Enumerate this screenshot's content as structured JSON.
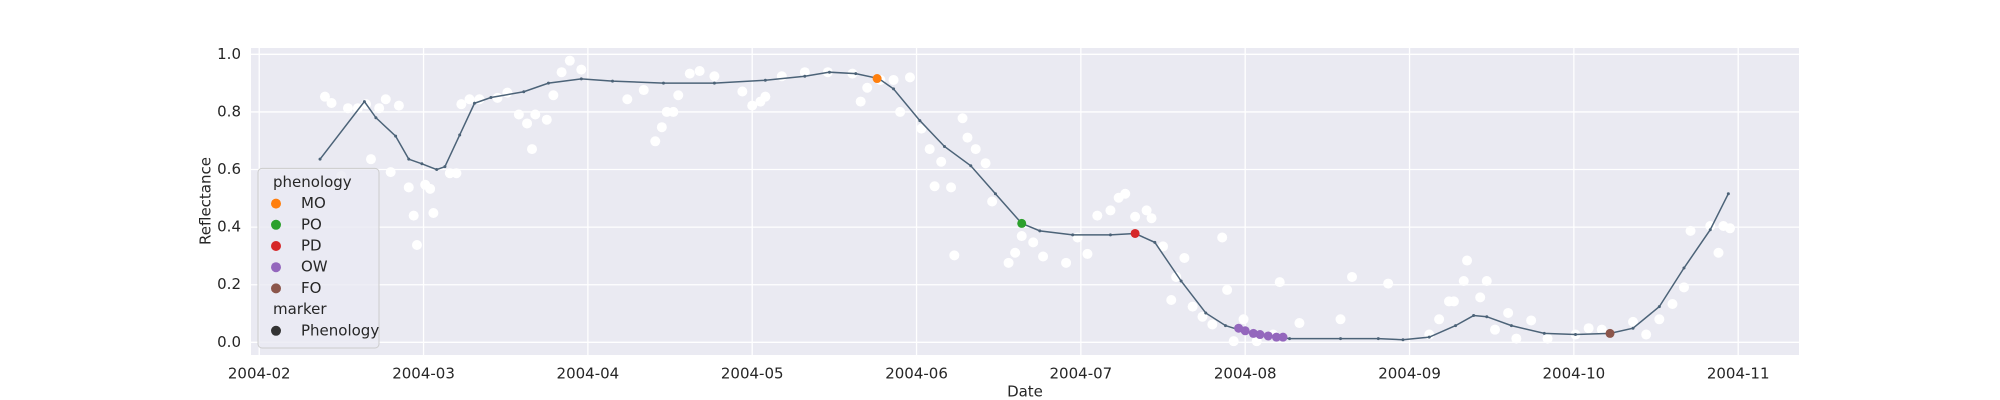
{
  "chart_data": {
    "type": "line",
    "xlabel": "Date",
    "ylabel": "Reflectance",
    "xlim": [
      1.95,
      11.37
    ],
    "ylim": [
      -0.044,
      1.022
    ],
    "xticks": [
      {
        "value": 2,
        "label": "2004-02"
      },
      {
        "value": 3,
        "label": "2004-03"
      },
      {
        "value": 4,
        "label": "2004-04"
      },
      {
        "value": 5,
        "label": "2004-05"
      },
      {
        "value": 6,
        "label": "2004-06"
      },
      {
        "value": 7,
        "label": "2004-07"
      },
      {
        "value": 8,
        "label": "2004-08"
      },
      {
        "value": 9,
        "label": "2004-09"
      },
      {
        "value": 10,
        "label": "2004-10"
      },
      {
        "value": 11,
        "label": "2004-11"
      }
    ],
    "yticks": [
      {
        "value": 0,
        "label": "0.0"
      },
      0.2,
      0.4,
      0.6,
      0.8,
      {
        "value": 1,
        "label": "1.0"
      }
    ],
    "grid": true,
    "legend_corner": "lower left",
    "observations": {
      "color": "#ffffff",
      "x": [
        2.4,
        2.44,
        2.5,
        2.54,
        2.6,
        2.65,
        2.73,
        2.77,
        2.85,
        2.68,
        2.8,
        2.91,
        2.94,
        2.96,
        3.01,
        3.04,
        3.06,
        3.16,
        3.2,
        3.23,
        3.28,
        3.34,
        3.45,
        3.51,
        3.58,
        3.63,
        3.66,
        3.68,
        3.75,
        3.79,
        3.84,
        3.89,
        3.96,
        4.24,
        4.34,
        4.41,
        4.45,
        4.48,
        4.52,
        4.55,
        4.62,
        4.68,
        4.77,
        4.94,
        5.0,
        5.05,
        5.08,
        5.18,
        5.32,
        5.46,
        5.61,
        5.66,
        5.7,
        5.78,
        5.86,
        5.9,
        5.96,
        6.03,
        6.08,
        6.11,
        6.15,
        6.21,
        6.23,
        6.28,
        6.31,
        6.36,
        6.42,
        6.46,
        6.56,
        6.6,
        6.64,
        6.71,
        6.77,
        6.91,
        6.98,
        7.04,
        7.1,
        7.18,
        7.23,
        7.27,
        7.33,
        7.4,
        7.43,
        7.5,
        7.55,
        7.58,
        7.63,
        7.68,
        7.74,
        7.8,
        7.86,
        7.89,
        7.93,
        7.99,
        8.07,
        8.17,
        8.21,
        8.33,
        8.58,
        8.65,
        8.87,
        9.12,
        9.18,
        9.24,
        9.27,
        9.33,
        9.35,
        9.43,
        9.47,
        9.52,
        9.6,
        9.65,
        9.74,
        9.84,
        10.01,
        10.09,
        10.17,
        10.36,
        10.44,
        10.52,
        10.6,
        10.67,
        10.71,
        10.83,
        10.88,
        10.91,
        10.95
      ],
      "values": [
        0.853,
        0.831,
        0.578,
        0.813,
        0.813,
        0.827,
        0.813,
        0.844,
        0.822,
        0.636,
        0.591,
        0.538,
        0.44,
        0.338,
        0.547,
        0.533,
        0.449,
        0.587,
        0.587,
        0.827,
        0.844,
        0.844,
        0.849,
        0.867,
        0.791,
        0.76,
        0.671,
        0.791,
        0.773,
        0.858,
        0.938,
        0.978,
        0.947,
        0.844,
        0.876,
        0.698,
        0.747,
        0.8,
        0.8,
        0.858,
        0.933,
        0.942,
        0.924,
        0.871,
        0.822,
        0.836,
        0.853,
        0.924,
        0.938,
        0.938,
        0.933,
        0.836,
        0.884,
        0.911,
        0.911,
        0.8,
        0.92,
        0.742,
        0.671,
        0.542,
        0.627,
        0.538,
        0.302,
        0.778,
        0.711,
        0.671,
        0.622,
        0.489,
        0.276,
        0.311,
        0.369,
        0.347,
        0.298,
        0.276,
        0.364,
        0.307,
        0.44,
        0.458,
        0.502,
        0.516,
        0.436,
        0.458,
        0.431,
        0.333,
        0.147,
        0.227,
        0.293,
        0.124,
        0.089,
        0.062,
        0.364,
        0.182,
        0.004,
        0.08,
        0.004,
        0.027,
        0.209,
        0.067,
        0.08,
        0.227,
        0.204,
        0.027,
        0.08,
        0.142,
        0.142,
        0.213,
        0.284,
        0.156,
        0.213,
        0.044,
        0.102,
        0.013,
        0.076,
        0.013,
        0.027,
        0.049,
        0.044,
        0.071,
        0.027,
        0.08,
        0.133,
        0.191,
        0.387,
        0.404,
        0.311,
        0.404,
        0.396
      ]
    },
    "curve": {
      "color": "#4c6378",
      "x": [
        2.37,
        2.64,
        2.71,
        2.83,
        2.91,
        2.99,
        3.08,
        3.13,
        3.22,
        3.31,
        3.41,
        3.61,
        3.76,
        3.96,
        4.15,
        4.46,
        4.77,
        5.08,
        5.32,
        5.47,
        5.63,
        5.77,
        5.86,
        6.02,
        6.17,
        6.33,
        6.48,
        6.64,
        6.75,
        6.95,
        7.18,
        7.33,
        7.45,
        7.61,
        7.76,
        7.88,
        7.96,
        8.07,
        8.27,
        8.58,
        8.81,
        8.96,
        9.12,
        9.28,
        9.39,
        9.47,
        9.62,
        9.82,
        10.01,
        10.22,
        10.36,
        10.52,
        10.67,
        10.83,
        10.94
      ],
      "values": [
        0.636,
        0.836,
        0.78,
        0.716,
        0.636,
        0.62,
        0.6,
        0.61,
        0.72,
        0.83,
        0.85,
        0.87,
        0.9,
        0.915,
        0.907,
        0.9,
        0.9,
        0.91,
        0.924,
        0.938,
        0.933,
        0.916,
        0.88,
        0.77,
        0.68,
        0.613,
        0.516,
        0.413,
        0.387,
        0.373,
        0.373,
        0.378,
        0.347,
        0.213,
        0.102,
        0.058,
        0.044,
        0.027,
        0.013,
        0.013,
        0.013,
        0.009,
        0.018,
        0.058,
        0.093,
        0.089,
        0.058,
        0.031,
        0.027,
        0.031,
        0.049,
        0.124,
        0.258,
        0.391,
        0.516
      ]
    },
    "legend_title": "phenology",
    "series": [
      {
        "name": "MO",
        "color": "#ff7f0e",
        "x": [
          5.76
        ],
        "values": [
          0.916
        ]
      },
      {
        "name": "PO",
        "color": "#2ca02c",
        "x": [
          6.64
        ],
        "values": [
          0.413
        ]
      },
      {
        "name": "PD",
        "color": "#d62728",
        "x": [
          7.33
        ],
        "values": [
          0.378
        ]
      },
      {
        "name": "OW",
        "color": "#9467bd",
        "x": [
          7.96,
          8.0,
          8.05,
          8.09,
          8.14,
          8.19,
          8.23
        ],
        "values": [
          0.049,
          0.04,
          0.031,
          0.027,
          0.022,
          0.018,
          0.018
        ]
      },
      {
        "name": "FO",
        "color": "#8c564b",
        "x": [
          10.22
        ],
        "values": [
          0.031
        ]
      }
    ],
    "marker_title": "marker",
    "marker_name": "Phenology",
    "marker_color": "#333333"
  }
}
